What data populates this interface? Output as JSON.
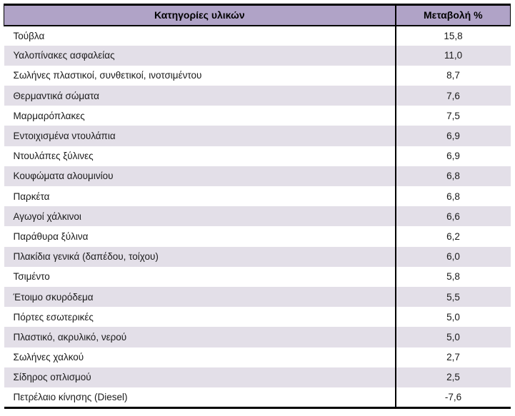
{
  "colors": {
    "header_bg": "#b0a3c7",
    "stripe_bg": "#e3dfe8",
    "border": "#000000",
    "text": "#1a1a1a"
  },
  "table": {
    "columns": [
      {
        "label": "Κατηγορίες υλικών"
      },
      {
        "label": "Μεταβολή %"
      }
    ],
    "rows": [
      {
        "category": "Τούβλα",
        "value": "15,8"
      },
      {
        "category": "Υαλοπίνακες ασφαλείας",
        "value": "11,0"
      },
      {
        "category": "Σωλήνες πλαστικοί, συνθετικοί, ινοτσιμέντου",
        "value": "8,7"
      },
      {
        "category": "Θερμαντικά σώματα",
        "value": "7,6"
      },
      {
        "category": "Μαρμαρόπλακες",
        "value": "7,5"
      },
      {
        "category": "Εντοιχισμένα ντουλάπια",
        "value": "6,9"
      },
      {
        "category": "Ντουλάπες ξύλινες",
        "value": "6,9"
      },
      {
        "category": "Κουφώματα αλουμινίου",
        "value": "6,8"
      },
      {
        "category": "Παρκέτα",
        "value": "6,8"
      },
      {
        "category": "Αγωγοί χάλκινοι",
        "value": "6,6"
      },
      {
        "category": "Παράθυρα ξύλινα",
        "value": "6,2"
      },
      {
        "category": "Πλακίδια γενικά (δαπέδου, τοίχου)",
        "value": "6,0"
      },
      {
        "category": "Τσιμέντο",
        "value": "5,8"
      },
      {
        "category": "Έτοιμο σκυρόδεμα",
        "value": "5,5"
      },
      {
        "category": "Πόρτες εσωτερικές",
        "value": "5,0"
      },
      {
        "category": "Πλαστικό, ακρυλικό, νερού",
        "value": "5,0"
      },
      {
        "category": "Σωλήνες χαλκού",
        "value": "2,7"
      },
      {
        "category": "Σίδηρος οπλισμού",
        "value": "2,5"
      },
      {
        "category": "Πετρέλαιο κίνησης (Diesel)",
        "value": "-7,6"
      }
    ]
  }
}
